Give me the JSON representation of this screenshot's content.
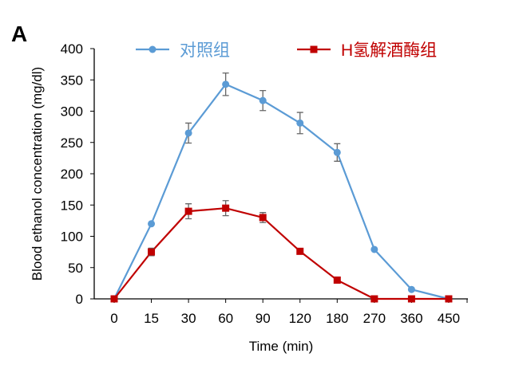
{
  "panel_label": "A",
  "chart_data": {
    "type": "line",
    "title": "",
    "xlabel": "Time (min)",
    "ylabel": "Blood ethanol concentration (mg/dl)",
    "categories": [
      "0",
      "15",
      "30",
      "60",
      "90",
      "120",
      "180",
      "270",
      "360",
      "450"
    ],
    "ylim": [
      0,
      400
    ],
    "yticks": [
      0,
      50,
      100,
      150,
      200,
      250,
      300,
      350,
      400
    ],
    "grid": false,
    "legend_position": "top",
    "series": [
      {
        "name": "对照组",
        "color": "#5b9bd5",
        "marker": "circle",
        "values": [
          0,
          120,
          265,
          343,
          317,
          281,
          234,
          79,
          15,
          0
        ],
        "errors": [
          0,
          0,
          16,
          18,
          16,
          17,
          14,
          0,
          0,
          0
        ]
      },
      {
        "name": "H氢解酒酶组",
        "color": "#c00000",
        "marker": "square",
        "values": [
          0,
          75,
          140,
          145,
          130,
          76,
          30,
          0,
          0,
          0
        ],
        "errors": [
          0,
          6,
          12,
          12,
          8,
          0,
          0,
          0,
          0,
          0
        ]
      }
    ]
  }
}
